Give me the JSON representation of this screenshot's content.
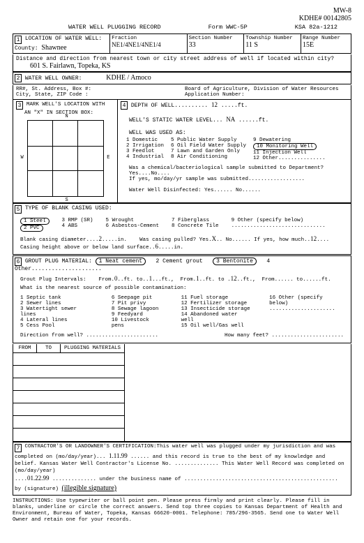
{
  "handwritten_header": {
    "line1": "MW-8",
    "line2": "KDHE# 00142805"
  },
  "title": {
    "main": "WATER WELL PLUGGING RECORD",
    "form": "Form WWC-5P",
    "ksa": "KSA 82a-1212"
  },
  "sec1": {
    "num": "1",
    "loc_label": "LOCATION OF WATER WELL:",
    "county_label": "County:",
    "county": "Shawnee",
    "fraction_label": "Fraction",
    "fraction": "NE1/4NE1/4NE1/4",
    "section_label": "Section Number",
    "section": "33",
    "township_label": "Township Number",
    "township": "11 S",
    "range_label": "Range Number",
    "range": "15E"
  },
  "distance": {
    "prompt": "Distance and direction from nearest town or city street address of well if located within city?",
    "value": "601 S. Fairlawn, Topeka, KS"
  },
  "sec2": {
    "num": "2",
    "label": "WATER WELL OWNER:",
    "value": "KDHE / Amoco",
    "addr1": "RR#, St. Address, Box #:",
    "addr2": "City, State, ZIP Code  :",
    "board": "Board of Agriculture, Division of Water Resources",
    "appnum": "Application Number:"
  },
  "sec3": {
    "num": "3",
    "label1": "MARK WELL'S LOCATION WITH",
    "label2": "AN \"X\" IN SECTION BOX:",
    "n": "N",
    "s": "S",
    "e": "E",
    "w": "W"
  },
  "sec4": {
    "num": "4",
    "depth_label": "DEPTH OF WELL..........",
    "depth": "12",
    "depth_unit": ".....ft.",
    "static_label": "WELL'S STATIC WATER LEVEL...",
    "static": "NA",
    "static_unit": "......ft.",
    "used_label": "WELL WAS USED AS:",
    "uses_c1": [
      "1 Domestic",
      "2 Irrigation",
      "3 Feedlot",
      "4 Industrial"
    ],
    "uses_c2": [
      "5 Public Water Supply",
      "6 Oil Field Water Supply",
      "7 Lawn and Garden Only",
      "8 Air Conditioning"
    ],
    "uses_c3": [
      "9 Dewatering",
      "10 Monitoring Well",
      "11 Injection Well",
      "12 Other..............."
    ],
    "selected_use": 10,
    "chem1": "Was a chemical/bacteriological sample submitted to Department? Yes....No....",
    "chem2": "If yes, mo/day/yr sample was submitted..................",
    "disinf": "Water Well Disinfected:  Yes...... No......"
  },
  "sec5": {
    "num": "5",
    "label": "TYPE OF BLANK CASING USED:",
    "c1": [
      "1 Steel",
      "2 PVC"
    ],
    "selected_casings": [
      1,
      2
    ],
    "c2": [
      "3 RMP (SR)",
      "4 ABS"
    ],
    "c3": [
      "5 Wrought",
      "6 Asbestos-Cement"
    ],
    "c4": [
      "7 Fiberglass",
      "8 Concrete Tile"
    ],
    "c5": [
      "9 Other (specify below)",
      ".............................."
    ],
    "diam_label": "Blank casing diameter....",
    "diam": "2",
    "diam_unit": ".....in.",
    "pulled": "Was casing pulled?  Yes.",
    "pulled_val": "X",
    "pulled2": ".. No...... If yes, how much..",
    "pulled_amt": "12",
    "pulled3": "....",
    "casing_height": "Casing height above or below land surface..",
    "casing_height_val": "6",
    "casing_height2": ".....in."
  },
  "sec6": {
    "num": "6",
    "label": "GROUT PLUG MATERIAL:",
    "m1": "1 Neat cement",
    "m2": "2 Cement grout",
    "m3": "3 Bentonite",
    "m4": "4 Other.....................",
    "selected_materials": [
      1,
      3
    ],
    "intervals_label": "Grout Plug Intervals:",
    "int1a": "From.",
    "int1a_v": "0",
    "int1b": "..ft. to..",
    "int1b_v": "1",
    "int1c": "...ft.,",
    "int2a": "From.",
    "int2a_v": "1",
    "int2b": "..ft. to .",
    "int2b_v": "12",
    "int2c": "..ft.,",
    "int3": "From...... to......ft.",
    "src_label": "What is the nearest source of possible contamination:",
    "s1": [
      "1 Septic tank",
      "2 Sewer lines",
      "3 Watertight sewer lines",
      "4 Lateral lines",
      "5 Cess Pool"
    ],
    "s2": [
      "6 Seepage pit",
      "7 Pit privy",
      "8 Sewage lagoon",
      "9 Feedyard",
      "10 Livestock pens"
    ],
    "s3": [
      "11 Fuel storage",
      "12 Fertilizer storage",
      "13 Insecticide storage",
      "14 Abandoned water well",
      "15 Oil well/Gas well"
    ],
    "s4": [
      "16 Other (specify below)",
      "....................."
    ],
    "dir_label": "Direction from well? .......................",
    "feet_label": "How many feet? ......................."
  },
  "tbl": {
    "h1": "FROM",
    "h2": "TO",
    "h3": "PLUGGING MATERIALS"
  },
  "sec7": {
    "num": "7",
    "text1": "CONTRACTOR'S OR LANDOWNER'S CERTIFICATION:This water well was plugged under my jurisdiction and was completed on (mo/day/year)...",
    "date1": "1.11.99",
    "text2": "...... and this record is true to the best of my knowledge and belief.  Kansas Water Well Contractor's License No. .............. This Water Well Record was completed on (mo/day/year)",
    "date2": "01.22.99",
    "text3": ".............. under the business name of .................................................",
    "sig_label": "by (signature)",
    "sig": "(illegible signature)"
  },
  "instructions": "INSTRUCTIONS: Use typewriter or ball point pen. Please press firmly and print clearly. Please fill in blanks, underline or circle the correct answers. Send top three copies to Kansas Department of Health and Environment, Bureau of Water, Topeka, Kansas 66620-0001. Telephone: 785/296-3565. Send one to Water Well Owner and retain one for your records.",
  "colors": {
    "text": "#000000",
    "bg": "#ffffff"
  }
}
